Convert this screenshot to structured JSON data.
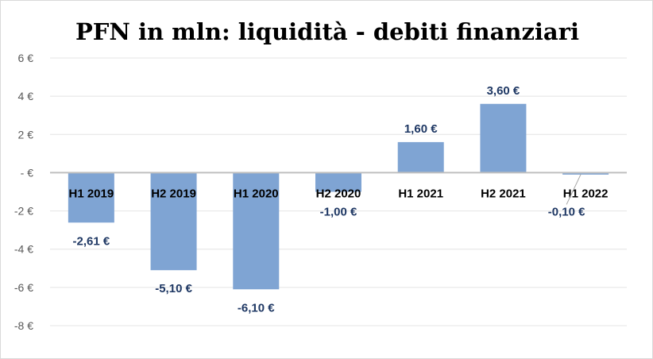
{
  "chart_data": {
    "type": "bar",
    "title": "PFN in mln: liquidità - debiti finanziari",
    "xlabel": "",
    "ylabel": "",
    "categories": [
      "H1 2019",
      "H2 2019",
      "H1 2020",
      "H2 2020",
      "H1 2021",
      "H2 2021",
      "H1 2022"
    ],
    "values": [
      -2.61,
      -5.1,
      -6.1,
      -1.0,
      1.6,
      3.6,
      -0.1
    ],
    "data_labels": [
      "-2,61 €",
      "-5,10 €",
      "-6,10 €",
      "-1,00 €",
      "1,60 €",
      "3,60 €",
      "-0,10 €"
    ],
    "ylim": [
      -8,
      6
    ],
    "yticks": [
      6,
      4,
      2,
      0,
      -2,
      -4,
      -6,
      -8
    ],
    "ytick_labels": [
      "6 €",
      "4 €",
      "2 €",
      "- €",
      "-2 €",
      "-4 €",
      "-6 €",
      "-8 €"
    ],
    "grid": true,
    "legend": "none",
    "colors": {
      "bar": "#7fa4d3",
      "gridline": "#e4e4e4",
      "axis": "#bfbfbf",
      "data_label": "#1f3864"
    }
  }
}
